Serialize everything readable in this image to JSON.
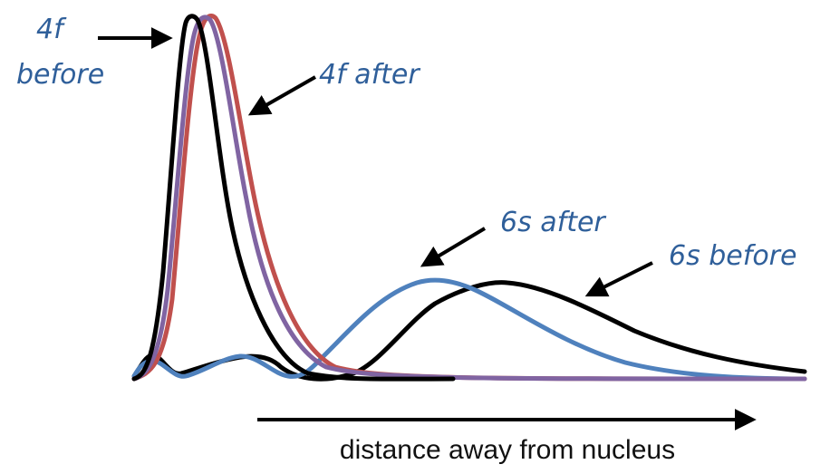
{
  "chart_data": {
    "type": "line",
    "title": "",
    "xlabel": "distance away from nucleus",
    "ylabel": "",
    "grid": false,
    "legend": "none",
    "series": [
      {
        "name": "6s before",
        "color": "#000000"
      },
      {
        "name": "6s after",
        "color": "#4f81bd"
      },
      {
        "name": "4f after",
        "color": "#c0504d"
      },
      {
        "name": "4f before",
        "color": "#8064a2"
      }
    ],
    "annotations": [
      {
        "text_lines": [
          "4f",
          "before"
        ],
        "target": "4f before"
      },
      {
        "text": "4f after",
        "target": "4f after"
      },
      {
        "text": "6s after",
        "target": "6s after"
      },
      {
        "text": "6s before",
        "target": "6s before"
      }
    ]
  }
}
